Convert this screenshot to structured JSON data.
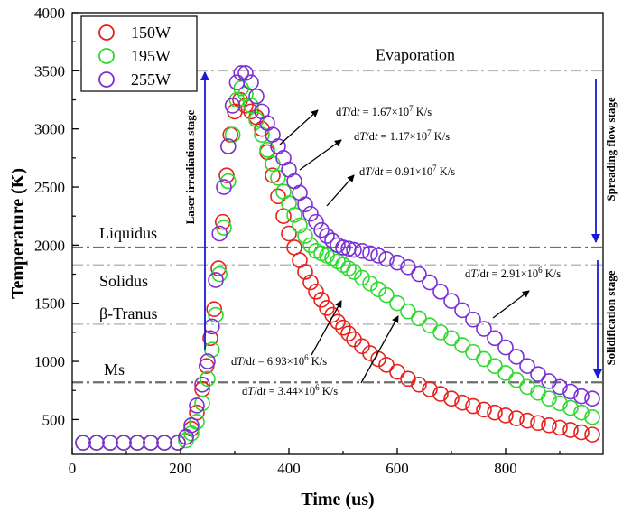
{
  "chart_data": {
    "type": "scatter",
    "title": "",
    "xlabel": "Time (us)",
    "ylabel": "Temperature (K)",
    "xlim": [
      0,
      980
    ],
    "ylim": [
      200,
      4000
    ],
    "xticks": [
      0,
      200,
      400,
      600,
      800
    ],
    "yticks": [
      500,
      1000,
      1500,
      2000,
      2500,
      3000,
      3500,
      4000
    ],
    "legend_position": "top-left",
    "series": [
      {
        "name": "150W",
        "color": "#e8201c",
        "x": [
          20,
          45,
          70,
          95,
          120,
          145,
          170,
          195,
          210,
          220,
          230,
          240,
          248,
          255,
          262,
          270,
          278,
          285,
          292,
          300,
          310,
          320,
          330,
          340,
          350,
          360,
          370,
          380,
          390,
          400,
          410,
          420,
          430,
          440,
          450,
          460,
          470,
          480,
          490,
          500,
          510,
          520,
          535,
          550,
          565,
          580,
          600,
          620,
          640,
          660,
          680,
          700,
          720,
          740,
          760,
          780,
          800,
          820,
          840,
          860,
          880,
          900,
          920,
          940,
          960
        ],
        "y": [
          300,
          300,
          300,
          300,
          300,
          300,
          300,
          300,
          350,
          420,
          560,
          760,
          960,
          1200,
          1450,
          1800,
          2200,
          2600,
          2950,
          3150,
          3250,
          3200,
          3150,
          3100,
          3000,
          2800,
          2600,
          2420,
          2250,
          2100,
          1980,
          1870,
          1770,
          1680,
          1600,
          1530,
          1460,
          1400,
          1340,
          1290,
          1240,
          1190,
          1130,
          1070,
          1020,
          970,
          910,
          850,
          800,
          760,
          720,
          680,
          645,
          615,
          585,
          560,
          535,
          510,
          490,
          470,
          450,
          430,
          410,
          390,
          370
        ]
      },
      {
        "name": "195W",
        "color": "#2ed92e",
        "x": [
          20,
          45,
          70,
          95,
          120,
          145,
          170,
          195,
          210,
          220,
          230,
          240,
          250,
          258,
          265,
          272,
          280,
          288,
          296,
          304,
          312,
          320,
          330,
          340,
          350,
          360,
          370,
          380,
          390,
          400,
          410,
          420,
          430,
          440,
          450,
          460,
          470,
          480,
          490,
          500,
          510,
          520,
          535,
          550,
          565,
          580,
          600,
          620,
          640,
          660,
          680,
          700,
          720,
          740,
          760,
          780,
          800,
          820,
          840,
          860,
          880,
          900,
          920,
          940,
          960
        ],
        "y": [
          300,
          300,
          300,
          300,
          300,
          300,
          300,
          300,
          320,
          380,
          480,
          640,
          850,
          1100,
          1400,
          1750,
          2150,
          2550,
          2950,
          3250,
          3350,
          3300,
          3200,
          3080,
          2950,
          2820,
          2700,
          2580,
          2460,
          2360,
          2260,
          2170,
          2080,
          2000,
          1950,
          1930,
          1910,
          1890,
          1860,
          1830,
          1800,
          1770,
          1720,
          1670,
          1620,
          1570,
          1500,
          1430,
          1370,
          1310,
          1250,
          1200,
          1140,
          1080,
          1020,
          960,
          900,
          840,
          780,
          730,
          680,
          640,
          600,
          560,
          520
        ]
      },
      {
        "name": "255W",
        "color": "#7a2fd6",
        "x": [
          20,
          45,
          70,
          95,
          120,
          145,
          170,
          195,
          210,
          220,
          230,
          240,
          250,
          258,
          265,
          272,
          280,
          288,
          296,
          304,
          312,
          320,
          330,
          340,
          350,
          360,
          370,
          380,
          390,
          400,
          410,
          420,
          430,
          440,
          450,
          460,
          470,
          480,
          490,
          500,
          510,
          520,
          535,
          550,
          565,
          580,
          600,
          620,
          640,
          660,
          680,
          700,
          720,
          740,
          760,
          780,
          800,
          820,
          840,
          860,
          880,
          900,
          920,
          940,
          960
        ],
        "y": [
          300,
          300,
          300,
          300,
          300,
          300,
          300,
          300,
          350,
          450,
          620,
          800,
          1000,
          1300,
          1700,
          2100,
          2500,
          2850,
          3200,
          3400,
          3480,
          3480,
          3400,
          3280,
          3150,
          3050,
          2950,
          2850,
          2750,
          2650,
          2550,
          2450,
          2350,
          2270,
          2200,
          2130,
          2080,
          2040,
          2000,
          1980,
          1970,
          1960,
          1950,
          1930,
          1910,
          1880,
          1850,
          1810,
          1750,
          1680,
          1600,
          1520,
          1440,
          1360,
          1280,
          1200,
          1120,
          1040,
          960,
          890,
          830,
          780,
          740,
          700,
          680
        ]
      }
    ],
    "reference_lines": [
      {
        "label": "Evaporation",
        "y": 3500,
        "color": "#b9b9b9",
        "dash": "dashdot"
      },
      {
        "label": "Liquidus",
        "y": 1980,
        "color": "#6e6e6e",
        "dash": "dashdot"
      },
      {
        "label": "Solidus",
        "y": 1830,
        "color": "#b9b9b9",
        "dash": "dashdot"
      },
      {
        "label": "β-Tranus",
        "y": 1320,
        "color": "#b9b9b9",
        "dash": "dashdot"
      },
      {
        "label": "Ms",
        "y": 820,
        "color": "#6e6e6e",
        "dash": "dashdot"
      }
    ],
    "annotations": [
      {
        "prefix": "d",
        "italic": "T",
        "mid": "/d",
        "italic2": "t",
        "rest": " = 1.67×10",
        "sup": "7",
        "unit": " K/s"
      },
      {
        "prefix": "d",
        "italic": "T",
        "mid": "/d",
        "italic2": "t",
        "rest": " = 1.17×10",
        "sup": "7",
        "unit": " K/s"
      },
      {
        "prefix": "d",
        "italic": "T",
        "mid": "/d",
        "italic2": "t",
        "rest": " = 0.91×10",
        "sup": "7",
        "unit": " K/s"
      },
      {
        "prefix": "d",
        "italic": "T",
        "mid": "/d",
        "italic2": "t",
        "rest": " = 2.91×10",
        "sup": "6",
        "unit": " K/s"
      },
      {
        "prefix": "d",
        "italic": "T",
        "mid": "/d",
        "italic2": "t",
        "rest": " = 6.93×10",
        "sup": "6",
        "unit": " K/s"
      },
      {
        "prefix": "d",
        "italic": "T",
        "mid": "/d",
        "italic2": "t",
        "rest": " = 3.44×10",
        "sup": "6",
        "unit": " K/s"
      }
    ],
    "stages": [
      {
        "label": "Laser irradiation stage"
      },
      {
        "label": "Spreading flow stage"
      },
      {
        "label": "Solidification stage"
      }
    ],
    "arrow_color": "#1a1adb"
  }
}
